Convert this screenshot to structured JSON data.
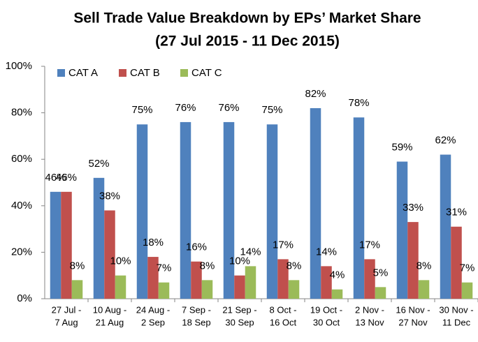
{
  "chart_data": {
    "type": "bar",
    "title": "Sell Trade Value Breakdown by EPs’ Market Share",
    "subtitle": "(27 Jul 2015 - 11 Dec 2015)",
    "categories": [
      [
        "27 Jul -",
        "7 Aug"
      ],
      [
        "10 Aug -",
        "21 Aug"
      ],
      [
        "24 Aug -",
        "2 Sep"
      ],
      [
        "7 Sep -",
        "18 Sep"
      ],
      [
        "21 Sep -",
        "30 Sep"
      ],
      [
        "8 Oct -",
        "16 Oct"
      ],
      [
        "19 Oct -",
        "30 Oct"
      ],
      [
        "2 Nov -",
        "13 Nov"
      ],
      [
        "16 Nov -",
        "27 Nov"
      ],
      [
        "30 Nov -",
        "11 Dec"
      ]
    ],
    "series": [
      {
        "name": "CAT A",
        "color": "#4f81bd",
        "values": [
          46,
          52,
          75,
          76,
          76,
          75,
          82,
          78,
          59,
          62
        ],
        "value_labels": [
          "46%",
          "52%",
          "75%",
          "76%",
          "76%",
          "75%",
          "82%",
          "78%",
          "59%",
          "62%"
        ]
      },
      {
        "name": "CAT B",
        "color": "#c0504d",
        "values": [
          46,
          38,
          18,
          16,
          10,
          17,
          14,
          17,
          33,
          31
        ],
        "value_labels": [
          "46%",
          "38%",
          "18%",
          "16%",
          "10%",
          "17%",
          "14%",
          "17%",
          "33%",
          "31%"
        ]
      },
      {
        "name": "CAT C",
        "color": "#9bbb59",
        "values": [
          8,
          10,
          7,
          8,
          14,
          8,
          4,
          5,
          8,
          7
        ],
        "value_labels": [
          "8%",
          "10%",
          "7%",
          "8%",
          "14%",
          "8%",
          "4%",
          "5%",
          "8%",
          "7%"
        ]
      }
    ],
    "ylim": [
      0,
      100
    ],
    "yticks": [
      {
        "value": 0,
        "label": "0%"
      },
      {
        "value": 20,
        "label": "20%"
      },
      {
        "value": 40,
        "label": "40%"
      },
      {
        "value": 60,
        "label": "60%"
      },
      {
        "value": 80,
        "label": "80%"
      },
      {
        "value": 100,
        "label": "100%"
      }
    ],
    "legend": "top-left"
  }
}
